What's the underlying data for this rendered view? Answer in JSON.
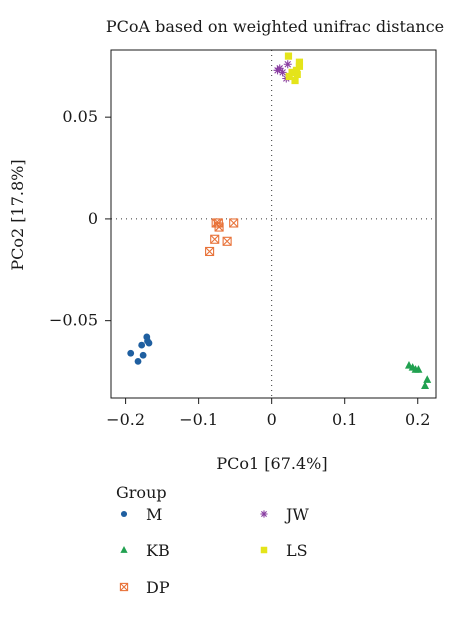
{
  "chart_data": {
    "type": "scatter",
    "title": "PCoA based on weighted unifrac distance",
    "xlabel": "PCo1 [67.4%]",
    "ylabel": "PCo2 [17.8%]",
    "xlim": [
      -0.22,
      0.225
    ],
    "ylim": [
      -0.088,
      0.083
    ],
    "xticks": [
      -0.2,
      -0.1,
      0,
      0.1,
      0.2
    ],
    "xtick_labels": [
      "−0.2",
      "−0.1",
      "0",
      "0.1",
      "0.2"
    ],
    "yticks": [
      -0.05,
      0,
      0.05
    ],
    "ytick_labels": [
      "−0.05",
      "0",
      "0.05"
    ],
    "reference_lines": {
      "x": 0,
      "y": 0,
      "style": "dotted"
    },
    "grid": false,
    "legend_title": "Group",
    "legend_position": "bottom",
    "series": [
      {
        "name": "M",
        "marker": "circle",
        "color": "#1f5fa0",
        "x": [
          -0.193,
          -0.183,
          -0.178,
          -0.176,
          -0.171,
          -0.17,
          -0.168
        ],
        "y": [
          -0.066,
          -0.07,
          -0.062,
          -0.067,
          -0.058,
          -0.06,
          -0.061
        ]
      },
      {
        "name": "KB",
        "marker": "triangle",
        "color": "#21a150",
        "x": [
          0.188,
          0.193,
          0.197,
          0.201,
          0.21,
          0.213
        ],
        "y": [
          -0.072,
          -0.073,
          -0.074,
          -0.074,
          -0.082,
          -0.079
        ]
      },
      {
        "name": "DP",
        "marker": "boxed-x",
        "color": "#e8733a",
        "x": [
          -0.085,
          -0.078,
          -0.076,
          -0.073,
          -0.072,
          -0.061,
          -0.052
        ],
        "y": [
          -0.016,
          -0.01,
          -0.002,
          -0.002,
          -0.004,
          -0.011,
          -0.002
        ]
      },
      {
        "name": "JW",
        "marker": "asterisk",
        "color": "#8a3fa2",
        "x": [
          0.008,
          0.011,
          0.015,
          0.02,
          0.022
        ],
        "y": [
          0.073,
          0.074,
          0.072,
          0.069,
          0.076
        ]
      },
      {
        "name": "LS",
        "marker": "square",
        "color": "#e4e41a",
        "x": [
          0.023,
          0.028,
          0.032,
          0.034,
          0.035,
          0.038,
          0.038,
          0.024
        ],
        "y": [
          0.08,
          0.072,
          0.068,
          0.073,
          0.071,
          0.075,
          0.077,
          0.07
        ]
      }
    ]
  }
}
